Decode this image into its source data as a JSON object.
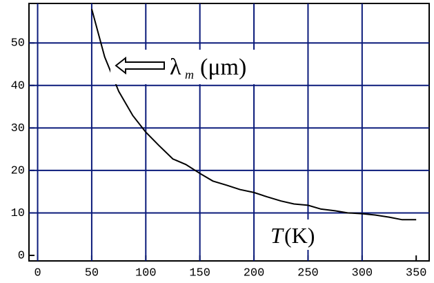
{
  "chart_data": {
    "type": "line",
    "x": [
      50,
      62,
      75,
      88,
      100,
      112,
      125,
      137,
      150,
      162,
      175,
      187,
      200,
      212,
      225,
      237,
      250,
      262,
      275,
      287,
      300,
      312,
      325,
      337,
      350
    ],
    "series": [
      {
        "color": "#000000",
        "values": [
          58,
          46.7,
          38.6,
          32.9,
          29,
          25.9,
          22.7,
          21.4,
          19.3,
          17.5,
          16.5,
          15.5,
          14.8,
          13.8,
          12.8,
          12.1,
          11.8,
          10.9,
          10.5,
          10.0,
          9.8,
          9.5,
          9.0,
          8.4,
          8.4
        ]
      }
    ],
    "xlim": [
      -8,
      362
    ],
    "ylim": [
      -1.3,
      59.3
    ],
    "xticks": [
      0,
      50,
      100,
      150,
      200,
      250,
      300,
      350
    ],
    "yticks": [
      0,
      10,
      20,
      30,
      40,
      50
    ],
    "grid": true,
    "grid_color": "#0a1a7a",
    "ylabel": {
      "symbol": "λ",
      "subscript": "m",
      "unit": "(μm)"
    },
    "xlabel": {
      "symbol": "T",
      "unit": "(K)"
    }
  }
}
